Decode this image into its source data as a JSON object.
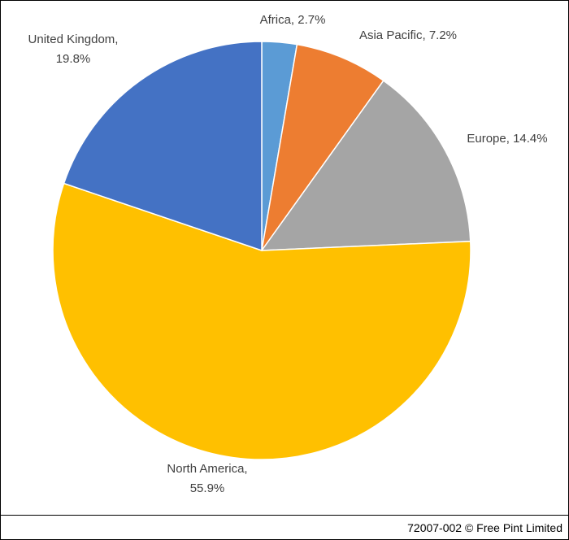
{
  "chart_data": {
    "type": "pie",
    "values": [
      2.7,
      7.2,
      14.4,
      55.9,
      19.8
    ],
    "value_labels": [
      "Africa, 2.7%",
      "Asia Pacific, 7.2%",
      "Europe, 14.4%",
      "North America, 55.9%",
      "United Kingdom, 19.8%"
    ],
    "colors": [
      "#5b9bd5",
      "#ed7d31",
      "#a5a5a5",
      "#ffc000",
      "#4472c4"
    ]
  },
  "footer": "72007-002 © Free Pint Limited"
}
